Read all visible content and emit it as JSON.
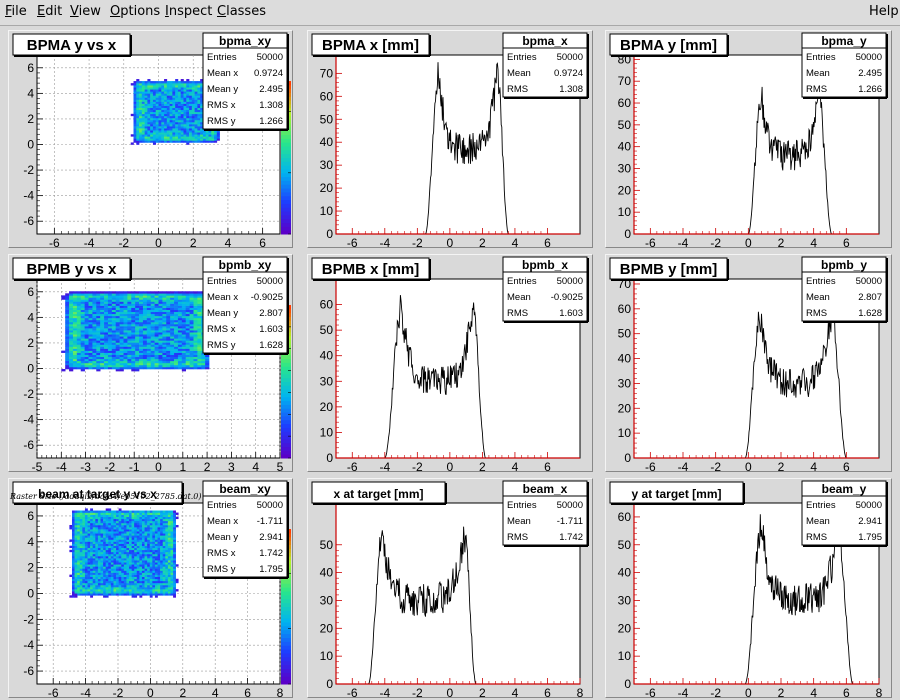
{
  "menu": [
    {
      "label": "File",
      "ul": "F",
      "rest": "ile"
    },
    {
      "label": "Edit",
      "ul": "E",
      "rest": "dit"
    },
    {
      "label": "View",
      "ul": "V",
      "rest": "iew"
    },
    {
      "label": "Options",
      "ul": "O",
      "rest": "ptions"
    },
    {
      "label": "Inspect",
      "ul": "I",
      "rest": "nspect"
    },
    {
      "label": "Classes",
      "ul": "C",
      "rest": "lasses"
    }
  ],
  "help_label": "Help",
  "caption": "Raster Size (/adaql2/data4/e05102_2785.dat.0)",
  "colors": {
    "background": "#d9d9d9",
    "hist_line": "#000000",
    "axis_red": "#cc0000",
    "frame": "#ffffff"
  },
  "chart_data": [
    {
      "type": "heatmap",
      "title": "BPMA y vs x",
      "stats_name": "bpma_xy",
      "stats": [
        [
          "Entries",
          "50000"
        ],
        [
          "Mean x",
          "0.9724"
        ],
        [
          "Mean y",
          "2.495"
        ],
        [
          "RMS x",
          "1.308"
        ],
        [
          "RMS y",
          "1.266"
        ]
      ],
      "xlim": [
        -7,
        7
      ],
      "ylim": [
        -7,
        7
      ],
      "xticks": [
        -6,
        -4,
        -2,
        0,
        2,
        4,
        6
      ],
      "yticks": [
        -6,
        -4,
        -2,
        0,
        2,
        4,
        6
      ],
      "region": {
        "x": [
          -1.3,
          3.2
        ],
        "y": [
          0.3,
          4.7
        ]
      },
      "zticks": [
        0,
        10,
        20
      ],
      "zmax": 25,
      "grid": true
    },
    {
      "type": "line",
      "title": "BPMA x [mm]",
      "stats_name": "bpma_x",
      "stats": [
        [
          "Entries",
          "50000"
        ],
        [
          "Mean",
          "0.9724"
        ],
        [
          "RMS",
          "1.308"
        ]
      ],
      "xlim": [
        -7,
        8
      ],
      "ylim": [
        0,
        78
      ],
      "xticks": [
        -6,
        -4,
        -2,
        0,
        2,
        4,
        6
      ],
      "yticks": [
        0,
        10,
        20,
        30,
        40,
        50,
        60,
        70
      ],
      "profile": {
        "edge_low": [
          -1.5,
          -0.7
        ],
        "edge_high": [
          2.9,
          3.6
        ],
        "peak": 70,
        "trough": 37,
        "noise": 7
      }
    },
    {
      "type": "line",
      "title": "BPMA y [mm]",
      "stats_name": "bpma_y",
      "stats": [
        [
          "Entries",
          "50000"
        ],
        [
          "Mean",
          "2.495"
        ],
        [
          "RMS",
          "1.266"
        ]
      ],
      "xlim": [
        -7,
        8
      ],
      "ylim": [
        0,
        82
      ],
      "xticks": [
        -6,
        -4,
        -2,
        0,
        2,
        4,
        6
      ],
      "yticks": [
        0,
        10,
        20,
        30,
        40,
        50,
        60,
        70,
        80
      ],
      "profile": {
        "edge_low": [
          0.0,
          0.8
        ],
        "edge_high": [
          4.3,
          5.1
        ],
        "peak": 64,
        "trough": 36,
        "noise": 7
      }
    },
    {
      "type": "heatmap",
      "title": "BPMB y vs x",
      "stats_name": "bpmb_xy",
      "stats": [
        [
          "Entries",
          "50000"
        ],
        [
          "Mean x",
          "-0.9025"
        ],
        [
          "Mean y",
          "2.807"
        ],
        [
          "RMS x",
          "1.603"
        ],
        [
          "RMS y",
          "1.628"
        ]
      ],
      "xlim": [
        -5,
        5
      ],
      "ylim": [
        -7,
        7
      ],
      "xticks": [
        -5,
        -4,
        -3,
        -2,
        -1,
        0,
        1,
        2,
        3,
        4,
        5
      ],
      "yticks": [
        -6,
        -4,
        -2,
        0,
        2,
        4,
        6
      ],
      "region": {
        "x": [
          -3.7,
          1.8
        ],
        "y": [
          0.1,
          5.7
        ]
      },
      "zticks": [
        0,
        2,
        4,
        6,
        8,
        10,
        12
      ],
      "zmax": 14,
      "grid": true
    },
    {
      "type": "line",
      "title": "BPMB x [mm]",
      "stats_name": "bpmb_x",
      "stats": [
        [
          "Entries",
          "50000"
        ],
        [
          "Mean",
          "-0.9025"
        ],
        [
          "RMS",
          "1.603"
        ]
      ],
      "xlim": [
        -7,
        8
      ],
      "ylim": [
        0,
        70
      ],
      "xticks": [
        -6,
        -4,
        -2,
        0,
        2,
        4,
        6
      ],
      "yticks": [
        0,
        10,
        20,
        30,
        40,
        50,
        60
      ],
      "profile": {
        "edge_low": [
          -4.0,
          -3.0
        ],
        "edge_high": [
          1.4,
          2.2
        ],
        "peak": 58,
        "trough": 30,
        "noise": 6
      }
    },
    {
      "type": "line",
      "title": "BPMB y [mm]",
      "stats_name": "bpmb_y",
      "stats": [
        [
          "Entries",
          "50000"
        ],
        [
          "Mean",
          "2.807"
        ],
        [
          "RMS",
          "1.628"
        ]
      ],
      "xlim": [
        -7,
        8
      ],
      "ylim": [
        0,
        72
      ],
      "xticks": [
        -6,
        -4,
        -2,
        0,
        2,
        4,
        6
      ],
      "yticks": [
        0,
        10,
        20,
        30,
        40,
        50,
        60,
        70
      ],
      "profile": {
        "edge_low": [
          -0.2,
          0.7
        ],
        "edge_high": [
          5.1,
          6.0
        ],
        "peak": 58,
        "trough": 30,
        "noise": 6
      }
    },
    {
      "type": "heatmap",
      "title": "beam at target y vs x",
      "stats_name": "beam_xy",
      "stats": [
        [
          "Entries",
          "50000"
        ],
        [
          "Mean x",
          "-1.711"
        ],
        [
          "Mean y",
          "2.941"
        ],
        [
          "RMS x",
          "1.742"
        ],
        [
          "RMS y",
          "1.795"
        ]
      ],
      "xlim": [
        -7,
        8
      ],
      "ylim": [
        -7,
        7
      ],
      "xticks": [
        -6,
        -4,
        -2,
        0,
        2,
        4,
        6,
        8
      ],
      "yticks": [
        -6,
        -4,
        -2,
        0,
        2,
        4,
        6
      ],
      "region": {
        "x": [
          -4.7,
          1.3
        ],
        "y": [
          0.0,
          6.2
        ]
      },
      "zticks": [
        0,
        5,
        10
      ],
      "zmax": 14,
      "grid": true
    },
    {
      "type": "line",
      "title": "x at target [mm]",
      "stats_name": "beam_x",
      "stats": [
        [
          "Entries",
          "50000"
        ],
        [
          "Mean",
          "-1.711"
        ],
        [
          "RMS",
          "1.742"
        ]
      ],
      "xlim": [
        -7,
        8
      ],
      "ylim": [
        0,
        65
      ],
      "xticks": [
        -6,
        -4,
        -2,
        0,
        2,
        4,
        6,
        8
      ],
      "yticks": [
        0,
        10,
        20,
        30,
        40,
        50
      ],
      "profile": {
        "edge_low": [
          -5.0,
          -4.2
        ],
        "edge_high": [
          0.9,
          1.6
        ],
        "peak": 53,
        "trough": 30,
        "noise": 6
      }
    },
    {
      "type": "line",
      "title": "y at target [mm]",
      "stats_name": "beam_y",
      "stats": [
        [
          "Entries",
          "50000"
        ],
        [
          "Mean",
          "2.941"
        ],
        [
          "RMS",
          "1.795"
        ]
      ],
      "xlim": [
        -7,
        8
      ],
      "ylim": [
        0,
        65
      ],
      "xticks": [
        -6,
        -4,
        -2,
        0,
        2,
        4,
        6,
        8
      ],
      "yticks": [
        0,
        10,
        20,
        30,
        40,
        50,
        60
      ],
      "profile": {
        "edge_low": [
          -0.2,
          0.8
        ],
        "edge_high": [
          5.5,
          6.4
        ],
        "peak": 56,
        "trough": 30,
        "noise": 6
      }
    }
  ]
}
